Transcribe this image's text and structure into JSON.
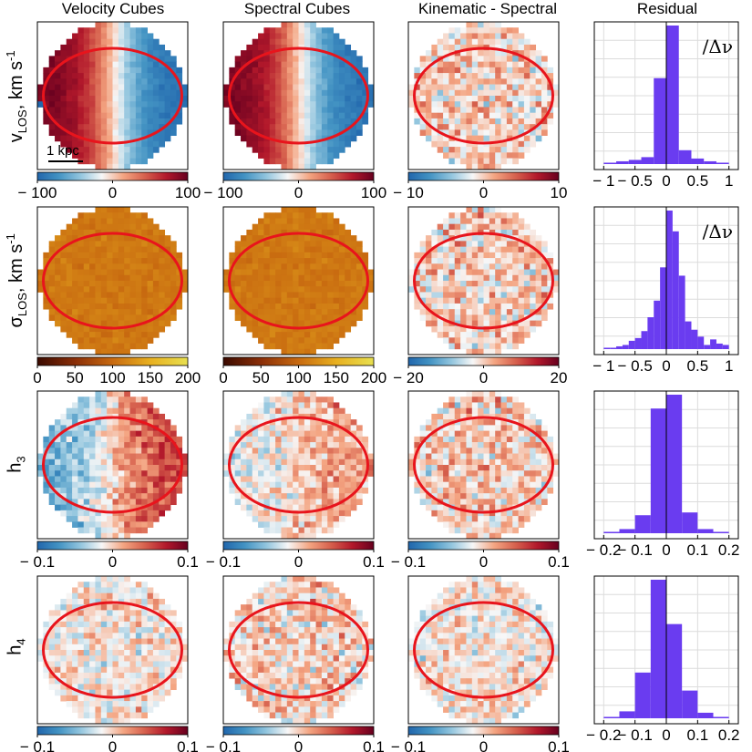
{
  "column_titles": [
    "Velocity Cubes",
    "Spectral Cubes",
    "Kinematic - Spectral",
    "Residual"
  ],
  "row_labels": [
    {
      "main": "v",
      "sub": "LOS",
      "rest": ", km s",
      "sup": "-1"
    },
    {
      "main": "σ",
      "sub": "LOS",
      "rest": ", km s",
      "sup": "-1"
    },
    {
      "main": "h",
      "sub": "3",
      "rest": "",
      "sup": ""
    },
    {
      "main": "h",
      "sub": "4",
      "rest": "",
      "sup": ""
    }
  ],
  "scale_bar_label": "1 kpc",
  "colors": {
    "diverging": [
      "#2166ac",
      "#4393c3",
      "#92c5de",
      "#f7f7f7",
      "#f4a582",
      "#d6604d",
      "#b2182b",
      "#67001f"
    ],
    "sigma_cmap": [
      "#3a0a00",
      "#8a2e08",
      "#c86a10",
      "#e8b020",
      "#e8e050"
    ],
    "ellipse": "#e8141c",
    "histogram": "#6a3cf0",
    "grid": "#dcdcdc"
  },
  "chart_data": [
    {
      "type": "heatmap",
      "row": 0,
      "col": 0,
      "quantity": "v_LOS",
      "colorbar": {
        "range": [
          -100,
          100
        ],
        "ticks": [
          "-100",
          "0",
          "100"
        ]
      },
      "pattern": "rotation"
    },
    {
      "type": "heatmap",
      "row": 0,
      "col": 1,
      "quantity": "v_LOS",
      "colorbar": {
        "range": [
          -100,
          100
        ],
        "ticks": [
          "-100",
          "0",
          "100"
        ]
      },
      "pattern": "rotation"
    },
    {
      "type": "heatmap",
      "row": 0,
      "col": 2,
      "quantity": "v_LOS difference",
      "colorbar": {
        "range": [
          -10,
          10
        ],
        "ticks": [
          "-10",
          "0",
          "10"
        ]
      },
      "pattern": "noise"
    },
    {
      "type": "bar",
      "row": 0,
      "col": 3,
      "annotation": "/Δν",
      "bin_edges": [
        -1,
        -0.8,
        -0.6,
        -0.4,
        -0.2,
        0,
        0.2,
        0.4,
        0.6,
        0.8,
        1
      ],
      "values": [
        0.01,
        0.02,
        0.03,
        0.05,
        0.62,
        1.0,
        0.1,
        0.04,
        0.02,
        0.01
      ],
      "xlim": [
        -1.15,
        1.15
      ],
      "xticks": [
        "-1",
        "-0.5",
        "0",
        "0.5",
        "1"
      ]
    },
    {
      "type": "heatmap",
      "row": 1,
      "col": 0,
      "quantity": "sigma_LOS",
      "colorbar": {
        "range": [
          0,
          200
        ],
        "ticks": [
          "0",
          "50",
          "100",
          "150",
          "200"
        ]
      },
      "pattern": "flat"
    },
    {
      "type": "heatmap",
      "row": 1,
      "col": 1,
      "quantity": "sigma_LOS",
      "colorbar": {
        "range": [
          0,
          200
        ],
        "ticks": [
          "0",
          "50",
          "100",
          "150",
          "200"
        ]
      },
      "pattern": "flat"
    },
    {
      "type": "heatmap",
      "row": 1,
      "col": 2,
      "quantity": "sigma_LOS difference",
      "colorbar": {
        "range": [
          -20,
          20
        ],
        "ticks": [
          "-20",
          "0",
          "20"
        ]
      },
      "pattern": "noise"
    },
    {
      "type": "bar",
      "row": 1,
      "col": 3,
      "annotation": "/Δν",
      "bin_edges": [
        -1,
        -0.9,
        -0.8,
        -0.7,
        -0.6,
        -0.5,
        -0.4,
        -0.3,
        -0.2,
        -0.1,
        0,
        0.1,
        0.2,
        0.3,
        0.4,
        0.5,
        0.6,
        0.7,
        0.8,
        0.9,
        1
      ],
      "values": [
        0.01,
        0.01,
        0.02,
        0.03,
        0.06,
        0.08,
        0.13,
        0.23,
        0.35,
        0.59,
        1.0,
        0.85,
        0.53,
        0.2,
        0.14,
        0.09,
        0.03,
        0.07,
        0.04,
        0.03
      ],
      "xlim": [
        -1.15,
        1.15
      ],
      "xticks": [
        "-1",
        "-0.5",
        "0",
        "0.5",
        "1"
      ]
    },
    {
      "type": "heatmap",
      "row": 2,
      "col": 0,
      "quantity": "h3",
      "colorbar": {
        "range": [
          -0.1,
          0.1
        ],
        "ticks": [
          "-0.1",
          "0",
          "0.1"
        ]
      },
      "pattern": "anti_rotation"
    },
    {
      "type": "heatmap",
      "row": 2,
      "col": 1,
      "quantity": "h3",
      "colorbar": {
        "range": [
          -0.1,
          0.1
        ],
        "ticks": [
          "-0.1",
          "0",
          "0.1"
        ]
      },
      "pattern": "weak_anti_rotation"
    },
    {
      "type": "heatmap",
      "row": 2,
      "col": 2,
      "quantity": "h3 difference",
      "colorbar": {
        "range": [
          -0.1,
          0.1
        ],
        "ticks": [
          "-0.1",
          "0",
          "0.1"
        ]
      },
      "pattern": "noise"
    },
    {
      "type": "bar",
      "row": 2,
      "col": 3,
      "annotation": "",
      "bin_edges": [
        -0.2,
        -0.15,
        -0.1,
        -0.05,
        0,
        0.05,
        0.1,
        0.15,
        0.2
      ],
      "values": [
        0.01,
        0.03,
        0.13,
        0.9,
        1.0,
        0.15,
        0.03,
        0.01
      ],
      "xlim": [
        -0.23,
        0.23
      ],
      "xticks": [
        "-0.2",
        "-0.1",
        "0",
        "0.1",
        "0.2"
      ]
    },
    {
      "type": "heatmap",
      "row": 3,
      "col": 0,
      "quantity": "h4",
      "colorbar": {
        "range": [
          -0.1,
          0.1
        ],
        "ticks": [
          "-0.1",
          "0",
          "0.1"
        ]
      },
      "pattern": "noise_blue"
    },
    {
      "type": "heatmap",
      "row": 3,
      "col": 1,
      "quantity": "h4",
      "colorbar": {
        "range": [
          -0.1,
          0.1
        ],
        "ticks": [
          "-0.1",
          "0",
          "0.1"
        ]
      },
      "pattern": "noise"
    },
    {
      "type": "heatmap",
      "row": 3,
      "col": 2,
      "quantity": "h4 difference",
      "colorbar": {
        "range": [
          -0.1,
          0.1
        ],
        "ticks": [
          "-0.1",
          "0",
          "0.1"
        ]
      },
      "pattern": "noise_blue"
    },
    {
      "type": "bar",
      "row": 3,
      "col": 3,
      "annotation": "",
      "bin_edges": [
        -0.2,
        -0.15,
        -0.1,
        -0.05,
        0,
        0.05,
        0.1,
        0.15,
        0.2
      ],
      "values": [
        0.01,
        0.05,
        0.33,
        1.0,
        0.68,
        0.2,
        0.04,
        0.01
      ],
      "xlim": [
        -0.23,
        0.23
      ],
      "xticks": [
        "-0.2",
        "-0.1",
        "0",
        "0.1",
        "0.2"
      ]
    }
  ]
}
